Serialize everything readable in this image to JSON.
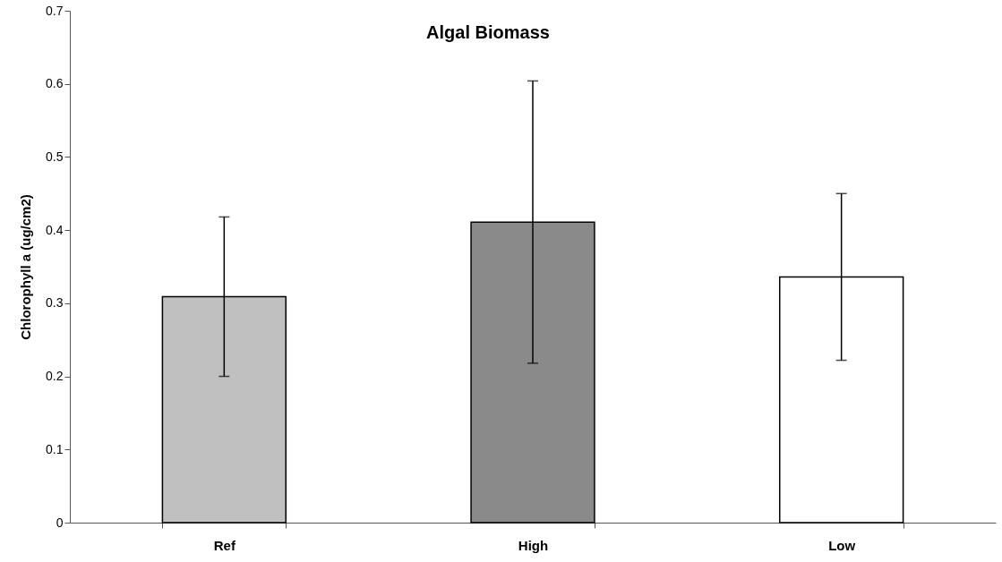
{
  "chart_data": {
    "type": "bar",
    "title": "Algal Biomass",
    "ylabel": "Chlorophyll a (ug/cm2)",
    "categories": [
      "Ref",
      "High",
      "Low"
    ],
    "values": [
      0.309,
      0.411,
      0.336
    ],
    "colors": [
      "#c0c0c0",
      "#8a8a8a",
      "#ffffff"
    ],
    "errors": [
      0.109,
      0.193,
      0.114
    ],
    "ylim": [
      0,
      0.7
    ],
    "yticks": [
      0,
      0.1,
      0.2,
      0.3,
      0.4,
      0.5,
      0.6,
      0.7
    ],
    "grid": false
  }
}
